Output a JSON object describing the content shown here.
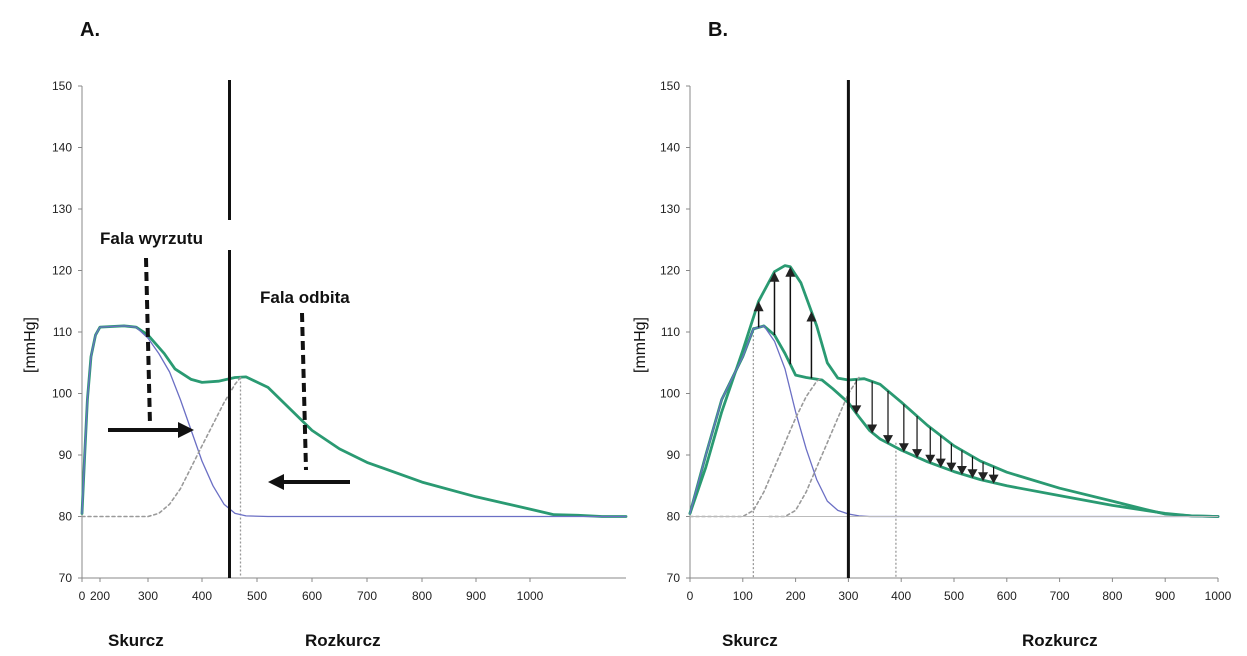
{
  "chart_data": [
    {
      "panel_label": "A.",
      "type": "line",
      "ylabel": "[mmHg]",
      "ylim": [
        70,
        150
      ],
      "y_ticks": [
        70,
        80,
        90,
        100,
        110,
        120,
        130,
        140,
        150
      ],
      "xlim": [
        0,
        1250
      ],
      "x_ticks": [
        0,
        200,
        300,
        400,
        500,
        600,
        700,
        800,
        900,
        1000
      ],
      "phase_labels": [
        "Skurcz",
        "Rozkurcz"
      ],
      "divider_x": 450,
      "dotted_marker_x": 470,
      "annotations": [
        "Fala wyrzutu",
        "Fala odbita"
      ],
      "series": [
        {
          "style": "green",
          "color": "#2a9a72",
          "x": [
            0,
            30,
            60,
            100,
            150,
            200,
            250,
            275,
            300,
            330,
            350,
            380,
            400,
            430,
            460,
            480,
            520,
            560,
            600,
            650,
            700,
            800,
            900,
            1000,
            1050,
            1100,
            1150,
            1200
          ],
          "y": [
            80.5,
            90,
            99,
            106,
            109.5,
            110.8,
            111,
            110.8,
            109.5,
            106.5,
            104,
            102.3,
            101.8,
            102,
            102.6,
            102.7,
            101,
            97.5,
            94,
            91,
            88.8,
            85.6,
            83.2,
            81.2,
            80.3,
            80.2,
            80,
            80
          ]
        },
        {
          "style": "blue",
          "color": "#6b6fc4",
          "x": [
            0,
            30,
            60,
            100,
            150,
            200,
            250,
            275,
            300,
            320,
            340,
            360,
            380,
            400,
            420,
            440,
            460,
            480,
            520,
            1200
          ],
          "y": [
            80.5,
            90,
            99,
            106,
            109.5,
            110.8,
            111,
            110.8,
            109,
            106.5,
            103.5,
            99,
            94,
            89,
            85,
            82,
            80.5,
            80.1,
            80,
            80
          ]
        },
        {
          "style": "gray-dotted",
          "color": "#9a9a9a",
          "x": [
            0,
            200,
            300,
            320,
            340,
            360,
            380,
            400,
            420,
            440,
            460,
            470
          ],
          "y": [
            80,
            80,
            80,
            80.5,
            82,
            84.5,
            88,
            91.5,
            95,
            98.5,
            101.5,
            102.6
          ]
        }
      ]
    },
    {
      "panel_label": "B.",
      "type": "line",
      "ylabel": "[mmHg]",
      "ylim": [
        70,
        150
      ],
      "y_ticks": [
        70,
        80,
        90,
        100,
        110,
        120,
        130,
        140,
        150
      ],
      "xlim": [
        0,
        1000
      ],
      "x_ticks": [
        0,
        100,
        200,
        300,
        400,
        500,
        600,
        700,
        800,
        900,
        1000
      ],
      "phase_labels": [
        "Skurcz",
        "Rozkurcz"
      ],
      "divider_x": 300,
      "dotted_marker_x": [
        120,
        390
      ],
      "series": [
        {
          "style": "green-upper",
          "color": "#2a9a72",
          "x": [
            0,
            30,
            60,
            100,
            130,
            160,
            180,
            190,
            210,
            240,
            260,
            280,
            300,
            330,
            360,
            400,
            450,
            500,
            550,
            600,
            700,
            800,
            870,
            900,
            950,
            1000
          ],
          "y": [
            80.5,
            88,
            97,
            107,
            115,
            119.8,
            120.8,
            120.6,
            118,
            111,
            105,
            102.5,
            102.2,
            102.4,
            101.5,
            98.6,
            94.8,
            91.5,
            89,
            87.2,
            84.6,
            82.5,
            81,
            80.4,
            80.1,
            80
          ]
        },
        {
          "style": "green-lower",
          "color": "#2a9a72",
          "x": [
            0,
            30,
            60,
            100,
            120,
            140,
            160,
            180,
            200,
            220,
            250,
            270,
            300,
            320,
            340,
            360,
            400,
            450,
            500,
            550,
            600,
            700,
            800,
            900,
            950,
            1000
          ],
          "y": [
            80.5,
            90,
            99,
            106,
            110.5,
            111,
            109.5,
            106.5,
            103,
            102.6,
            102.2,
            100.8,
            98.5,
            96.2,
            94,
            92.6,
            90.8,
            88.9,
            87.3,
            86,
            85,
            83.4,
            81.8,
            80.5,
            80.1,
            80
          ]
        },
        {
          "style": "blue",
          "color": "#6b6fc4",
          "x": [
            0,
            30,
            60,
            100,
            120,
            140,
            160,
            180,
            200,
            220,
            240,
            260,
            280,
            300,
            320,
            340,
            1000
          ],
          "y": [
            80.5,
            90,
            99,
            106,
            110.5,
            111,
            108.5,
            104,
            97,
            91,
            86,
            82.5,
            81,
            80.4,
            80.1,
            80,
            80
          ]
        },
        {
          "style": "gray-dotted-1",
          "color": "#9a9a9a",
          "x": [
            0,
            100,
            120,
            140,
            160,
            180,
            200,
            220,
            240,
            250
          ],
          "y": [
            80,
            80,
            81,
            84,
            88,
            92,
            96,
            99.5,
            102,
            102.6
          ]
        },
        {
          "style": "gray-dotted-2",
          "color": "#9a9a9a",
          "x": [
            150,
            180,
            200,
            220,
            240,
            260,
            280,
            300,
            320
          ],
          "y": [
            80,
            80,
            81,
            84,
            88,
            92,
            96,
            100,
            102.6
          ]
        }
      ]
    }
  ]
}
